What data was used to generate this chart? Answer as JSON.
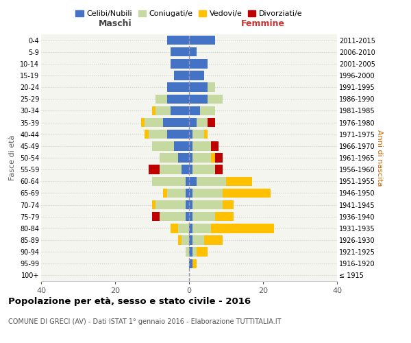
{
  "age_groups": [
    "100+",
    "95-99",
    "90-94",
    "85-89",
    "80-84",
    "75-79",
    "70-74",
    "65-69",
    "60-64",
    "55-59",
    "50-54",
    "45-49",
    "40-44",
    "35-39",
    "30-34",
    "25-29",
    "20-24",
    "15-19",
    "10-14",
    "5-9",
    "0-4"
  ],
  "birth_years": [
    "≤ 1915",
    "1916-1920",
    "1921-1925",
    "1926-1930",
    "1931-1935",
    "1936-1940",
    "1941-1945",
    "1946-1950",
    "1951-1955",
    "1956-1960",
    "1961-1965",
    "1966-1970",
    "1971-1975",
    "1976-1980",
    "1981-1985",
    "1986-1990",
    "1991-1995",
    "1996-2000",
    "2001-2005",
    "2006-2010",
    "2011-2015"
  ],
  "male": {
    "celibi": [
      0,
      0,
      0,
      0,
      0,
      1,
      1,
      1,
      1,
      2,
      3,
      4,
      6,
      7,
      5,
      6,
      6,
      4,
      5,
      5,
      6
    ],
    "coniugati": [
      0,
      0,
      1,
      2,
      3,
      7,
      8,
      5,
      9,
      6,
      5,
      6,
      5,
      5,
      4,
      3,
      0,
      0,
      0,
      0,
      0
    ],
    "vedovi": [
      0,
      0,
      0,
      1,
      2,
      0,
      1,
      1,
      0,
      0,
      0,
      0,
      1,
      1,
      1,
      0,
      0,
      0,
      0,
      0,
      0
    ],
    "divorziati": [
      0,
      0,
      0,
      0,
      0,
      2,
      0,
      0,
      0,
      3,
      0,
      0,
      0,
      0,
      0,
      0,
      0,
      0,
      0,
      0,
      0
    ]
  },
  "female": {
    "nubili": [
      0,
      1,
      1,
      1,
      1,
      1,
      1,
      1,
      2,
      1,
      1,
      1,
      1,
      2,
      3,
      5,
      5,
      4,
      5,
      2,
      7
    ],
    "coniugate": [
      0,
      0,
      1,
      3,
      5,
      6,
      8,
      8,
      8,
      6,
      5,
      5,
      3,
      3,
      4,
      4,
      2,
      0,
      0,
      0,
      0
    ],
    "vedove": [
      0,
      1,
      3,
      5,
      17,
      5,
      3,
      13,
      7,
      0,
      1,
      0,
      1,
      0,
      0,
      0,
      0,
      0,
      0,
      0,
      0
    ],
    "divorziate": [
      0,
      0,
      0,
      0,
      0,
      0,
      0,
      0,
      0,
      2,
      2,
      2,
      0,
      2,
      0,
      0,
      0,
      0,
      0,
      0,
      0
    ]
  },
  "colors": {
    "celibi_nubili": "#4472c4",
    "coniugati": "#c5d9a0",
    "vedovi": "#ffc000",
    "divorziati": "#c00000"
  },
  "xlim": 40,
  "title": "Popolazione per età, sesso e stato civile - 2016",
  "subtitle": "COMUNE DI GRECI (AV) - Dati ISTAT 1° gennaio 2016 - Elaborazione TUTTITALIA.IT",
  "ylabel_left": "Fasce di età",
  "ylabel_right": "Anni di nascita",
  "xlabel_left": "Maschi",
  "xlabel_right": "Femmine",
  "bg_color": "#f5f5f0",
  "legend_labels": [
    "Celibi/Nubili",
    "Coniugati/e",
    "Vedovi/e",
    "Divorziati/e"
  ]
}
